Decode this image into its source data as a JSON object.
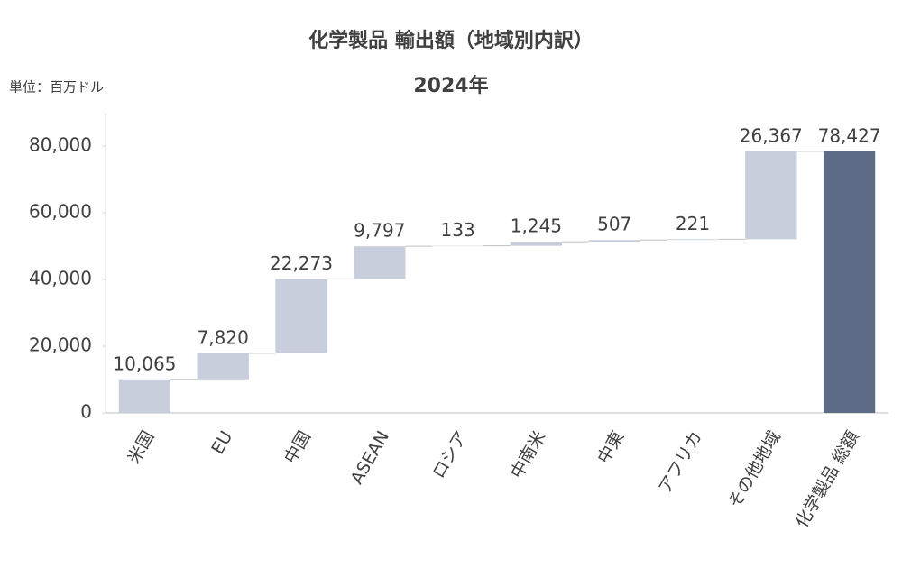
{
  "chart_data": {
    "type": "waterfall",
    "title": "化学製品 輸出額（地域別内訳）",
    "subtitle": "2024年",
    "unit_label": "単位：百万ドル",
    "categories": [
      "米国",
      "EU",
      "中国",
      "ASEAN",
      "ロシア",
      "中南米",
      "中東",
      "アフリカ",
      "その他地域",
      "化学製品 総額"
    ],
    "values": [
      10065,
      7820,
      22273,
      9797,
      133,
      1245,
      507,
      221,
      26367,
      78427
    ],
    "value_labels": [
      "10,065",
      "7,820",
      "22,273",
      "9,797",
      "133",
      "1,245",
      "507",
      "221",
      "26,367",
      "78,427"
    ],
    "is_total": [
      false,
      false,
      false,
      false,
      false,
      false,
      false,
      false,
      false,
      true
    ],
    "color": "#c8cedb",
    "total_color": "#5d6b87",
    "ylim": [
      0,
      90000
    ],
    "yticks": [
      0,
      {
        "value": 20000,
        "label": "20,000"
      },
      {
        "value": 40000,
        "label": "40,000"
      },
      {
        "value": 60000,
        "label": "60,000"
      },
      {
        "value": 80000,
        "label": "80,000"
      }
    ],
    "grid": false
  }
}
